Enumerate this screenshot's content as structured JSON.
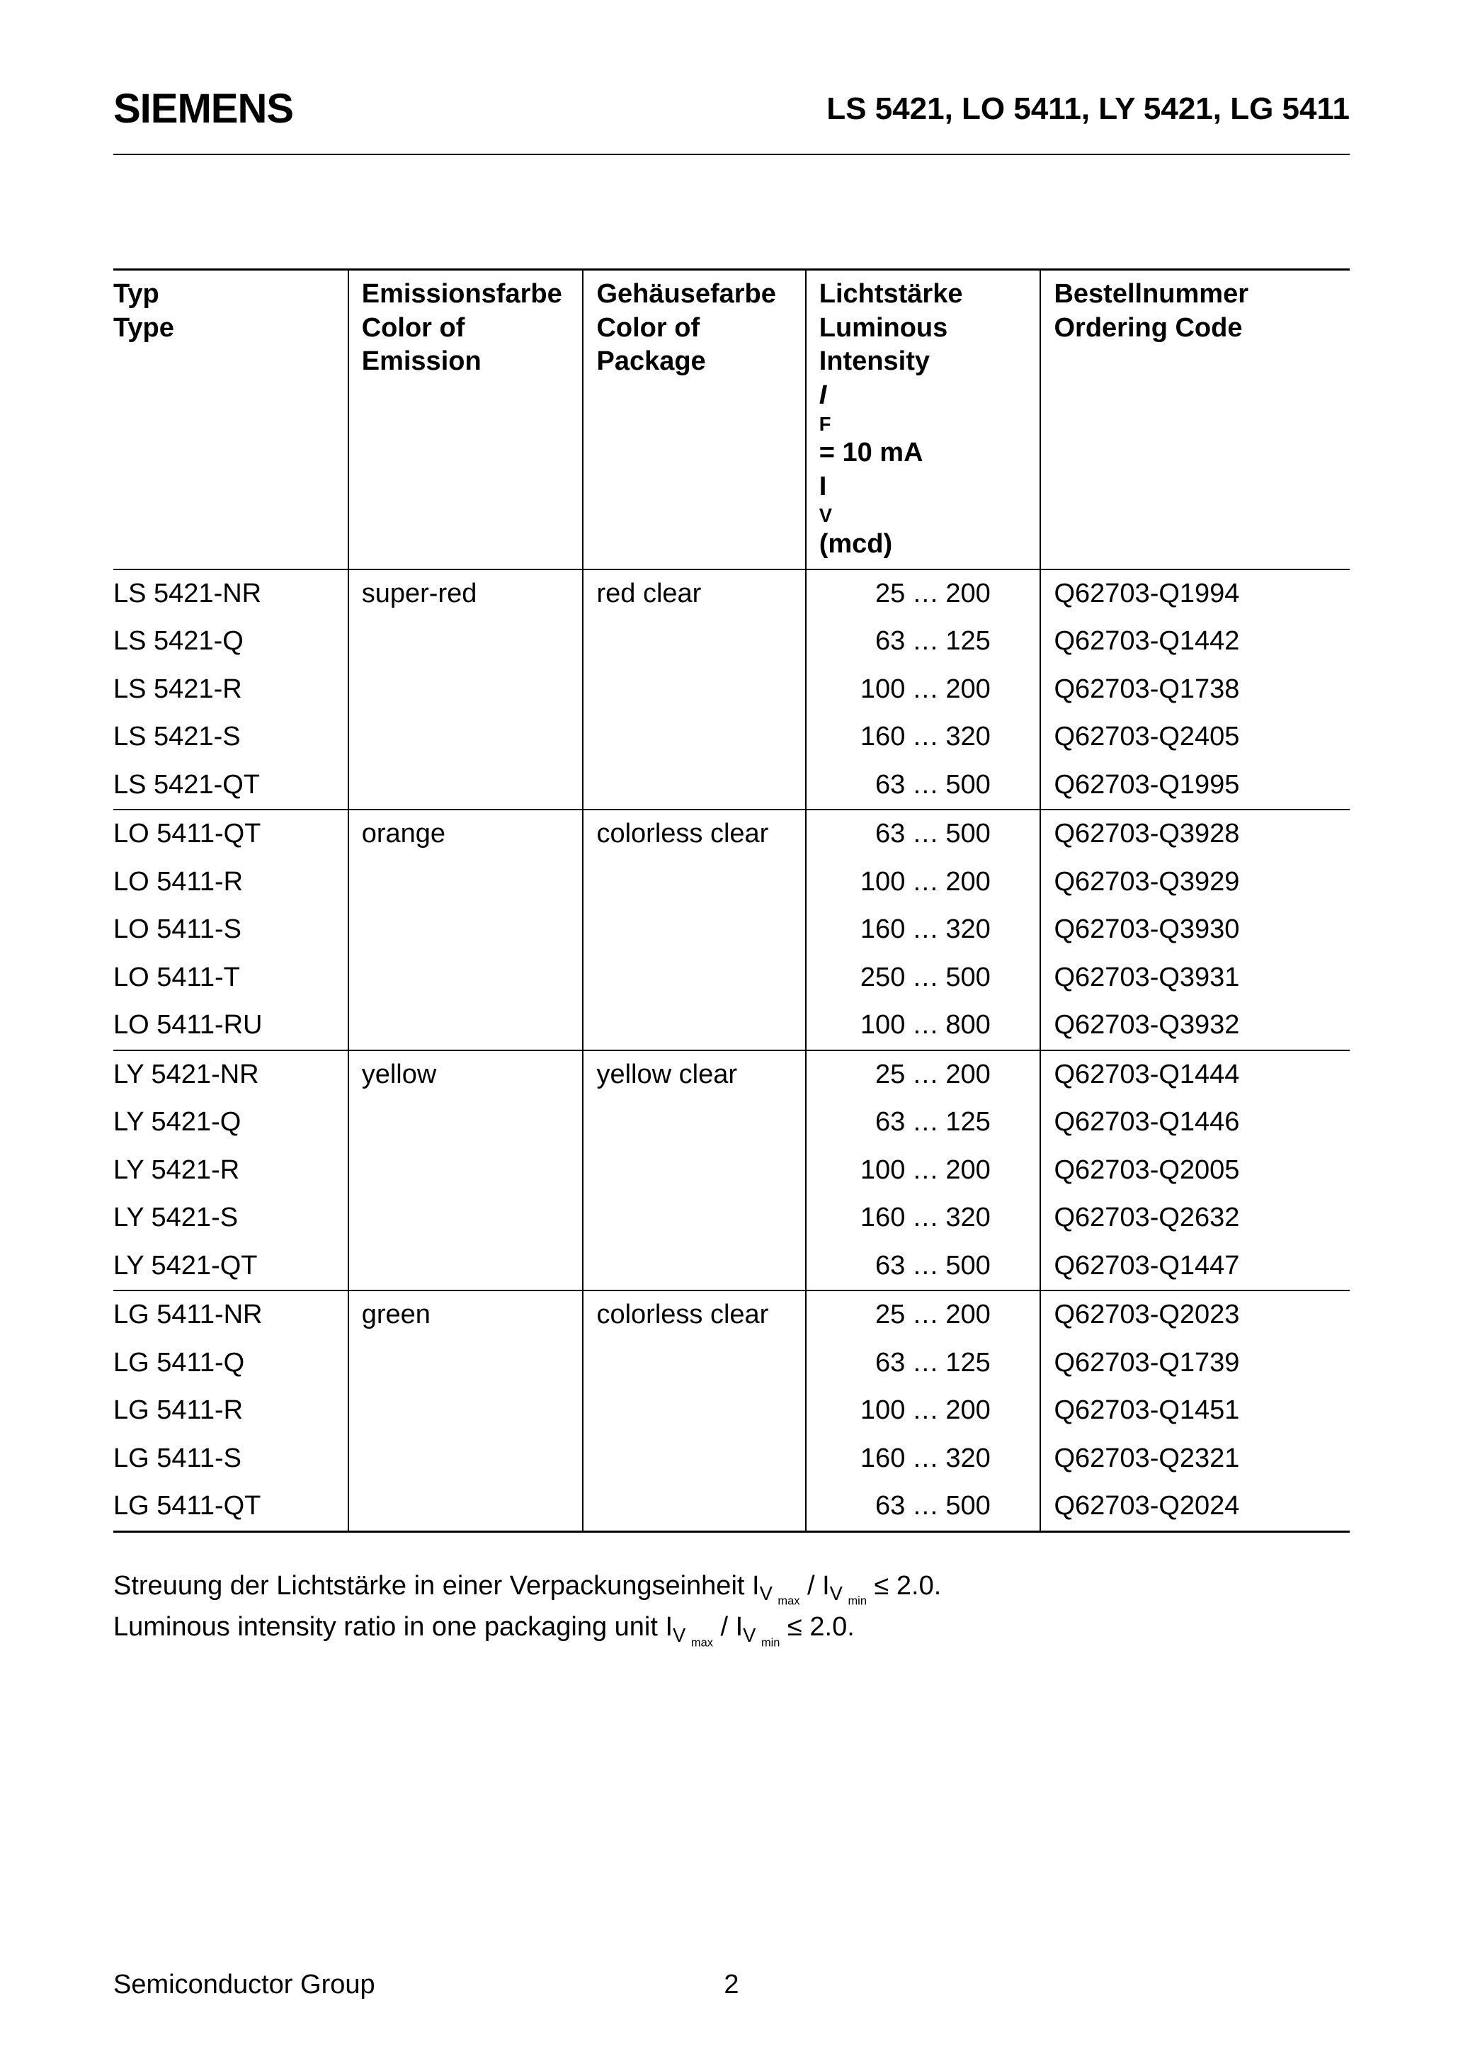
{
  "header": {
    "logo": "SIEMENS",
    "doc_title": "LS 5421, LO 5411, LY 5421, LG 5411"
  },
  "table": {
    "headers": {
      "type_de": "Typ",
      "type_en": "Type",
      "emission_de": "Emissionsfarbe",
      "emission_en1": "Color of",
      "emission_en2": "Emission",
      "package_de": "Gehäusefarbe",
      "package_en1": "Color of",
      "package_en2": "Package",
      "intensity_de": "Lichtstärke",
      "intensity_en1": "Luminous",
      "intensity_en2": "Intensity",
      "intensity_cond_pre": "I",
      "intensity_cond_sub": "F",
      "intensity_cond_post": " = 10 mA",
      "intensity_unit_pre": "I",
      "intensity_unit_sub": "V",
      "intensity_unit_post": " (mcd)",
      "code_de": "Bestellnummer",
      "code_en": "Ordering Code"
    },
    "groups": [
      {
        "emission": "super-red",
        "package": "red clear",
        "rows": [
          {
            "type": "LS 5421-NR",
            "low": "25",
            "high": "200",
            "code": "Q62703-Q1994"
          },
          {
            "type": "LS 5421-Q",
            "low": "63",
            "high": "125",
            "code": "Q62703-Q1442"
          },
          {
            "type": "LS 5421-R",
            "low": "100",
            "high": "200",
            "code": "Q62703-Q1738"
          },
          {
            "type": "LS 5421-S",
            "low": "160",
            "high": "320",
            "code": "Q62703-Q2405"
          },
          {
            "type": "LS 5421-QT",
            "low": "63",
            "high": "500",
            "code": "Q62703-Q1995"
          }
        ]
      },
      {
        "emission": "orange",
        "package": "colorless clear",
        "rows": [
          {
            "type": "LO 5411-QT",
            "low": "63",
            "high": "500",
            "code": "Q62703-Q3928"
          },
          {
            "type": "LO 5411-R",
            "low": "100",
            "high": "200",
            "code": "Q62703-Q3929"
          },
          {
            "type": "LO 5411-S",
            "low": "160",
            "high": "320",
            "code": "Q62703-Q3930"
          },
          {
            "type": "LO 5411-T",
            "low": "250",
            "high": "500",
            "code": "Q62703-Q3931"
          },
          {
            "type": "LO 5411-RU",
            "low": "100",
            "high": "800",
            "code": "Q62703-Q3932"
          }
        ]
      },
      {
        "emission": "yellow",
        "package": "yellow clear",
        "rows": [
          {
            "type": "LY 5421-NR",
            "low": "25",
            "high": "200",
            "code": "Q62703-Q1444"
          },
          {
            "type": "LY 5421-Q",
            "low": "63",
            "high": "125",
            "code": "Q62703-Q1446"
          },
          {
            "type": "LY 5421-R",
            "low": "100",
            "high": "200",
            "code": "Q62703-Q2005"
          },
          {
            "type": "LY 5421-S",
            "low": "160",
            "high": "320",
            "code": "Q62703-Q2632"
          },
          {
            "type": "LY 5421-QT",
            "low": "63",
            "high": "500",
            "code": "Q62703-Q1447"
          }
        ]
      },
      {
        "emission": "green",
        "package": "colorless clear",
        "rows": [
          {
            "type": "LG 5411-NR",
            "low": "25",
            "high": "200",
            "code": "Q62703-Q2023"
          },
          {
            "type": "LG 5411-Q",
            "low": "63",
            "high": "125",
            "code": "Q62703-Q1739"
          },
          {
            "type": "LG 5411-R",
            "low": "100",
            "high": "200",
            "code": "Q62703-Q1451"
          },
          {
            "type": "LG 5411-S",
            "low": "160",
            "high": "320",
            "code": "Q62703-Q2321"
          },
          {
            "type": "LG 5411-QT",
            "low": "63",
            "high": "500",
            "code": "Q62703-Q2024"
          }
        ]
      }
    ]
  },
  "notes": {
    "line1_pre": "Streuung der Lichtstärke in einer Verpackungseinheit I",
    "line1_mid": " / I",
    "line1_post": " ≤ 2.0.",
    "line2_pre": "Luminous intensity ratio in one packaging unit I",
    "line2_mid": " / I",
    "line2_post": " ≤ 2.0.",
    "sub_v": "V",
    "sub_max": "max",
    "sub_min": "min"
  },
  "footer": {
    "group": "Semiconductor Group",
    "page": "2"
  },
  "dots": "…"
}
